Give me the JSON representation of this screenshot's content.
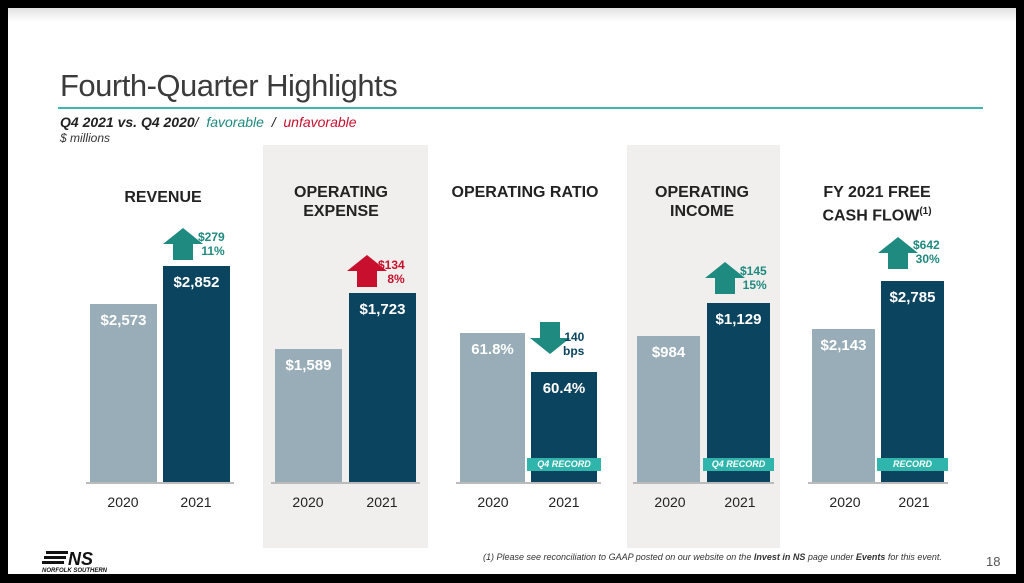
{
  "title": "Fourth-Quarter Highlights",
  "subtitle": {
    "comparison": "Q4 2021 vs. Q4 2020",
    "slash": "/",
    "favorable": "favorable",
    "slash2": "/",
    "unfavorable": "unfavorable",
    "units": "$ millions"
  },
  "colors": {
    "bar_2020": "#98adb7",
    "bar_2021": "#0b445f",
    "favorable": "#1f8a7f",
    "unfavorable": "#c8102e",
    "accent": "#3fb6b0"
  },
  "panels": [
    {
      "title": "REVENUE",
      "y2020": "2020",
      "y2021": "2021",
      "v2020": "$2,573",
      "v2021": "$2,852",
      "change1": "$279",
      "change2": "11%",
      "direction": "up",
      "tone": "favorable"
    },
    {
      "title": "OPERATING EXPENSE",
      "y2020": "2020",
      "y2021": "2021",
      "v2020": "$1,589",
      "v2021": "$1,723",
      "change1": "$134",
      "change2": "8%",
      "direction": "up",
      "tone": "unfavorable"
    },
    {
      "title": "OPERATING RATIO",
      "y2020": "2020",
      "y2021": "2021",
      "v2020": "61.8%",
      "v2021": "60.4%",
      "change1": "140",
      "change2": "bps",
      "direction": "down",
      "tone": "favorable",
      "badge": "Q4 RECORD"
    },
    {
      "title": "OPERATING INCOME",
      "y2020": "2020",
      "y2021": "2021",
      "v2020": "$984",
      "v2021": "$1,129",
      "change1": "$145",
      "change2": "15%",
      "direction": "up",
      "tone": "favorable",
      "badge": "Q4 RECORD"
    },
    {
      "title": "FY 2021 FREE CASH FLOW",
      "footnote_mark": "(1)",
      "y2020": "2020",
      "y2021": "2021",
      "v2020": "$2,143",
      "v2021": "$2,785",
      "change1": "$642",
      "change2": "30%",
      "direction": "up",
      "tone": "favorable",
      "badge": "RECORD"
    }
  ],
  "footnote": {
    "pre": "(1) Please see reconciliation to GAAP posted on our website on the ",
    "link1": "Invest in NS",
    "mid": " page under ",
    "link2": "Events",
    "post": " for this event."
  },
  "page_number": "18",
  "logo": {
    "mark": "NS",
    "name": "NORFOLK SOUTHERN"
  }
}
